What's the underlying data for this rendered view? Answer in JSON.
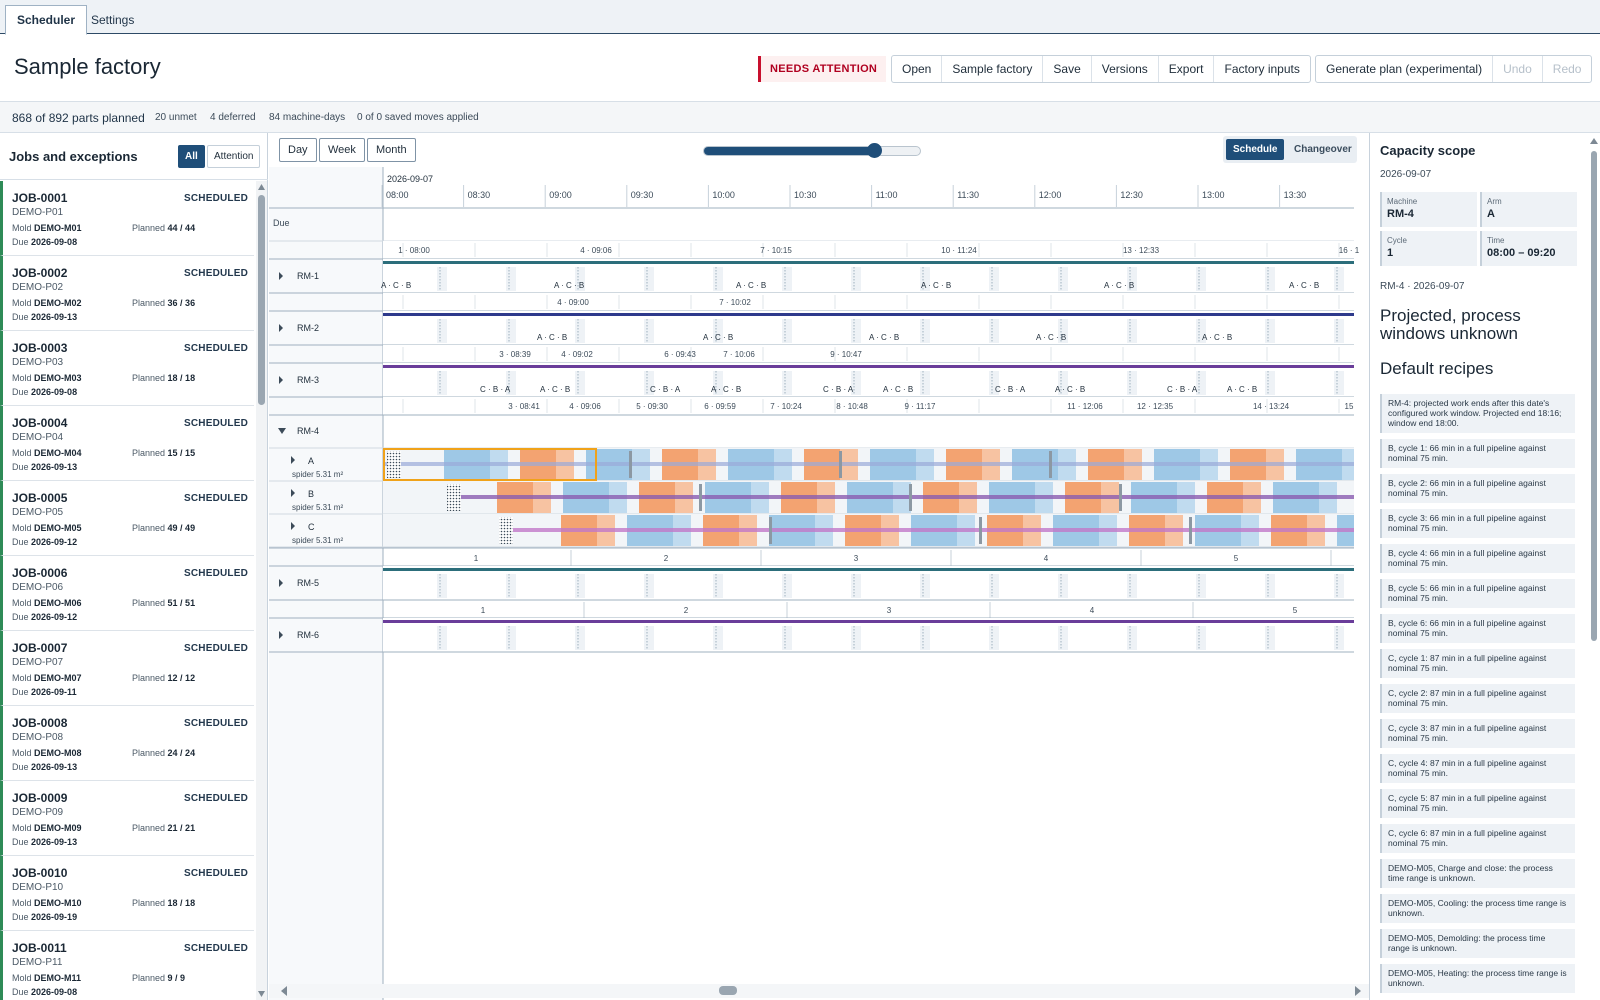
{
  "tabs": [
    {
      "label": "Scheduler",
      "active": true
    },
    {
      "label": "Settings",
      "active": false
    }
  ],
  "header": {
    "title": "Sample factory",
    "attention_label": "NEEDS ATTENTION",
    "buttons": [
      "Open",
      "Sample factory",
      "Save",
      "Versions",
      "Export",
      "Factory inputs"
    ],
    "plan_buttons": [
      {
        "label": "Generate plan (experimental)",
        "enabled": true
      },
      {
        "label": "Undo",
        "enabled": false
      },
      {
        "label": "Redo",
        "enabled": false
      }
    ]
  },
  "stats": {
    "planned": "868 of 892 parts planned",
    "unmet": "20 unmet",
    "deferred": "4 deferred",
    "machine_days": "84 machine-days",
    "moves": "0 of 0 saved moves applied"
  },
  "jobs_panel": {
    "title": "Jobs and exceptions",
    "filters": [
      {
        "label": "All",
        "active": true
      },
      {
        "label": "Attention",
        "active": false
      }
    ],
    "mold_label": "Mold",
    "planned_label": "Planned",
    "due_label": "Due",
    "jobs": [
      {
        "id": "JOB-0001",
        "part": "DEMO-P01",
        "mold": "DEMO-M01",
        "planned": "44 / 44",
        "due": "2026-09-08",
        "status": "SCHEDULED"
      },
      {
        "id": "JOB-0002",
        "part": "DEMO-P02",
        "mold": "DEMO-M02",
        "planned": "36 / 36",
        "due": "2026-09-13",
        "status": "SCHEDULED"
      },
      {
        "id": "JOB-0003",
        "part": "DEMO-P03",
        "mold": "DEMO-M03",
        "planned": "18 / 18",
        "due": "2026-09-08",
        "status": "SCHEDULED"
      },
      {
        "id": "JOB-0004",
        "part": "DEMO-P04",
        "mold": "DEMO-M04",
        "planned": "15 / 15",
        "due": "2026-09-13",
        "status": "SCHEDULED"
      },
      {
        "id": "JOB-0005",
        "part": "DEMO-P05",
        "mold": "DEMO-M05",
        "planned": "49 / 49",
        "due": "2026-09-12",
        "status": "SCHEDULED"
      },
      {
        "id": "JOB-0006",
        "part": "DEMO-P06",
        "mold": "DEMO-M06",
        "planned": "51 / 51",
        "due": "2026-09-12",
        "status": "SCHEDULED"
      },
      {
        "id": "JOB-0007",
        "part": "DEMO-P07",
        "mold": "DEMO-M07",
        "planned": "12 / 12",
        "due": "2026-09-11",
        "status": "SCHEDULED"
      },
      {
        "id": "JOB-0008",
        "part": "DEMO-P08",
        "mold": "DEMO-M08",
        "planned": "24 / 24",
        "due": "2026-09-13",
        "status": "SCHEDULED"
      },
      {
        "id": "JOB-0009",
        "part": "DEMO-P09",
        "mold": "DEMO-M09",
        "planned": "21 / 21",
        "due": "2026-09-13",
        "status": "SCHEDULED"
      },
      {
        "id": "JOB-0010",
        "part": "DEMO-P10",
        "mold": "DEMO-M10",
        "planned": "18 / 18",
        "due": "2026-09-19",
        "status": "SCHEDULED"
      },
      {
        "id": "JOB-0011",
        "part": "DEMO-P11",
        "mold": "DEMO-M11",
        "planned": "9 / 9",
        "due": "2026-09-08",
        "status": "SCHEDULED"
      }
    ]
  },
  "timeline": {
    "zoom_buttons": [
      "Day",
      "Week",
      "Month"
    ],
    "zoom_level": 0.78,
    "view_toggle": [
      {
        "label": "Schedule",
        "active": true
      },
      {
        "label": "Changeover",
        "active": false
      }
    ],
    "date": "2026-09-07",
    "due_label": "Due",
    "times": [
      "08:00",
      "08:30",
      "09:00",
      "09:30",
      "10:00",
      "10:30",
      "11:00",
      "11:30",
      "12:00",
      "12:30",
      "13:00",
      "13:30"
    ],
    "colors": {
      "teal": "#2c6e7b",
      "navy": "#2e3a8c",
      "purple": "#6a3d9a",
      "orange": "#f39a62",
      "blue": "#8fbfe3",
      "highlight": "#f0a21a"
    },
    "rows": [
      {
        "machine": "RM-1",
        "line_color": "#2c6e7b",
        "marks": [
          "1 · 08:00",
          "4 · 09:06",
          "7 · 10:15",
          "10 · 11:24",
          "13 · 12:33",
          "16 · 1"
        ],
        "labels": [
          "A · C · B",
          "A · C · B",
          "A · C · B",
          "A · C · B",
          "A · C · B",
          "A · C · B"
        ]
      },
      {
        "machine": "RM-2",
        "line_color": "#2e3a8c",
        "marks": [
          "4 · 09:00",
          "7 · 10:02"
        ],
        "labels": [
          "A · C · B",
          "A · C · B",
          "A · C · B",
          "A · C · B",
          "A · C · B"
        ]
      },
      {
        "machine": "RM-3",
        "line_color": "#6a3d9a",
        "marks": [
          "3 · 08:39",
          "4 · 09:02",
          "6 · 09:43",
          "7 · 10:06",
          "9 · 10:47"
        ],
        "labels": [
          "C · B · A",
          "A · C · B",
          "C · B · A",
          "A · C · B",
          "C · B · A",
          "A · C · B",
          "C · B · A",
          "A · C · B",
          "C · B · A",
          "A · C · B"
        ]
      },
      {
        "machine": "RM-4",
        "expanded": true,
        "marks": [
          "3 · 08:41",
          "4 · 09:06",
          "5 · 09:30",
          "6 · 09:59",
          "7 · 10:24",
          "8 · 10:48",
          "9 · 11:17",
          "11 · 12:06",
          "12 · 12:35",
          "14 · 13:24",
          "15"
        ],
        "arms": [
          {
            "name": "A",
            "spider": "spider 5.31 m²"
          },
          {
            "name": "B",
            "spider": "spider 5.31 m²"
          },
          {
            "name": "C",
            "spider": "spider 5.31 m²"
          }
        ]
      },
      {
        "machine": "RM-5",
        "marks": [
          "1",
          "2",
          "3",
          "4",
          "5"
        ]
      },
      {
        "machine": "RM-6",
        "marks": [
          "1",
          "2",
          "3",
          "4",
          "5"
        ]
      }
    ]
  },
  "capacity": {
    "title": "Capacity scope",
    "date": "2026-09-07",
    "fields": [
      {
        "k": "Machine",
        "v": "RM-4"
      },
      {
        "k": "Arm",
        "v": "A"
      },
      {
        "k": "Cycle",
        "v": "1"
      },
      {
        "k": "Time",
        "v": "08:00 – 09:20"
      }
    ],
    "subtitle": "RM-4 · 2026-09-07",
    "heading1": "Projected, process windows unknown",
    "heading2": "Default recipes",
    "notes": [
      "RM-4: projected work ends after this date's configured work window. Projected end 18:16; window end 18:00.",
      "B, cycle 1: 66 min in a full pipeline against nominal 75 min.",
      "B, cycle 2: 66 min in a full pipeline against nominal 75 min.",
      "B, cycle 3: 66 min in a full pipeline against nominal 75 min.",
      "B, cycle 4: 66 min in a full pipeline against nominal 75 min.",
      "B, cycle 5: 66 min in a full pipeline against nominal 75 min.",
      "B, cycle 6: 66 min in a full pipeline against nominal 75 min.",
      "C, cycle 1: 87 min in a full pipeline against nominal 75 min.",
      "C, cycle 2: 87 min in a full pipeline against nominal 75 min.",
      "C, cycle 3: 87 min in a full pipeline against nominal 75 min.",
      "C, cycle 4: 87 min in a full pipeline against nominal 75 min.",
      "C, cycle 5: 87 min in a full pipeline against nominal 75 min.",
      "C, cycle 6: 87 min in a full pipeline against nominal 75 min.",
      "DEMO-M05, Charge and close: the process time range is unknown.",
      "DEMO-M05, Cooling: the process time range is unknown.",
      "DEMO-M05, Demolding: the process time range is unknown.",
      "DEMO-M05, Heating: the process time range is unknown."
    ]
  }
}
